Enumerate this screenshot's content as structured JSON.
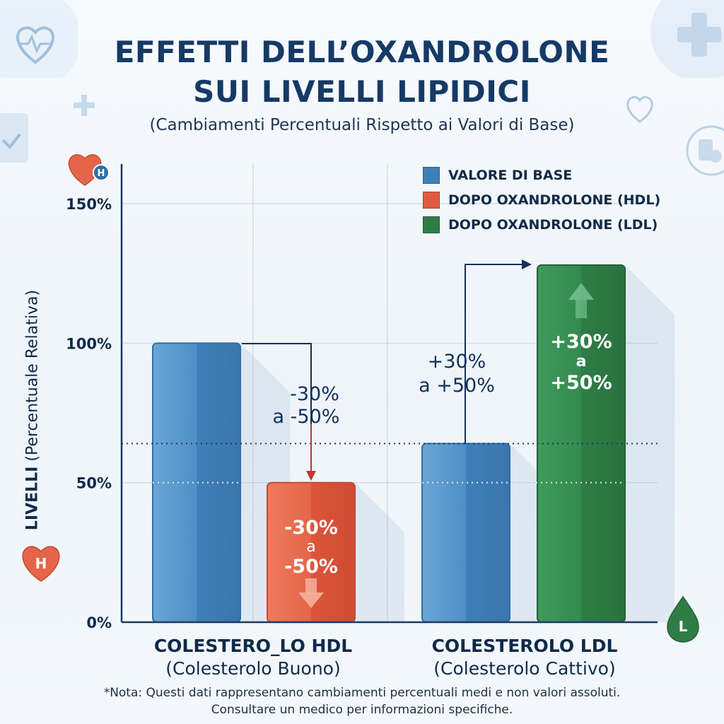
{
  "header": {
    "title_line1": "EFFETTI DELL’OXANDROLONE",
    "title_line2": "SUI LIVELLI LIPIDICI",
    "subtitle": "(Cambiamenti Percentuali Rispetto ai Valori di Base)"
  },
  "legend": [
    {
      "label": "VALORE DI BASE",
      "color": "#3f7fb8"
    },
    {
      "label": "DOPO OXANDROLONE (HDL)",
      "color": "#e15b40"
    },
    {
      "label": "DOPO OXANDROLONE (LDL)",
      "color": "#2e7d46"
    }
  ],
  "axis": {
    "ylabel_bold": "LIVELLI",
    "ylabel_rest": " (Percentuale Relativa)",
    "ticks": [
      "0%",
      "50%",
      "100%",
      "150%"
    ]
  },
  "categories": [
    {
      "main": "COLESTERO_LO HDL",
      "sub": "(Colesterolo Buono)"
    },
    {
      "main": "COLESTEROLO LDL",
      "sub": "(Colesterolo Cattivo)"
    }
  ],
  "annotations": {
    "hdl_arrow_line1": "-30%",
    "hdl_arrow_line2": "a -50%",
    "hdl_bar_line1": "-30%",
    "hdl_bar_line2": "a",
    "hdl_bar_line3": "-50%",
    "ldl_arrow_line1": "+30%",
    "ldl_arrow_line2": "a +50%",
    "ldl_bar_line1": "+30%",
    "ldl_bar_line2": "a",
    "ldl_bar_line3": "+50%"
  },
  "badges": {
    "hdl_top": "H",
    "hdl_bottom": "H",
    "ldl": "L"
  },
  "note": {
    "line1": "*Nota: Questi dati rappresentano cambiamenti percentuali medi e non valori assoluti.",
    "line2": "Consultare un medico per informazioni specifiche."
  },
  "chart_data": {
    "type": "bar",
    "title": "EFFETTI DELL’OXANDROLONE SUI LIVELLI LIPIDICI",
    "subtitle": "(Cambiamenti Percentuali Rispetto ai Valori di Base)",
    "ylabel": "LIVELLI (Percentuale Relativa)",
    "ylim": [
      0,
      150
    ],
    "yticks": [
      0,
      50,
      100,
      150
    ],
    "grid": true,
    "legend_position": "top-right",
    "categories": [
      "COLESTERO_LO HDL",
      "COLESTEROLO LDL"
    ],
    "series": [
      {
        "name": "VALORE DI BASE",
        "values": [
          100,
          64
        ],
        "color": "#3f7fb8"
      },
      {
        "name": "DOPO OXANDROLONE (HDL)",
        "values": [
          50,
          null
        ],
        "color": "#e15b40"
      },
      {
        "name": "DOPO OXANDROLONE (LDL)",
        "values": [
          null,
          128
        ],
        "color": "#2e7d46"
      }
    ],
    "reference_line": 64
  }
}
